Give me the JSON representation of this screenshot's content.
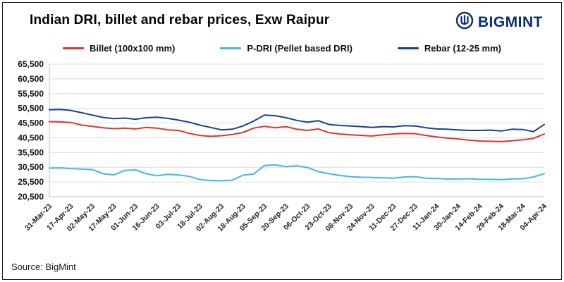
{
  "header": {
    "title": "Indian DRI, billet and rebar prices, Exw Raipur",
    "brand": "BIGMINT"
  },
  "footer": {
    "source": "Source: BigMint"
  },
  "chart_data": {
    "type": "line",
    "title": "Indian DRI, billet and rebar prices, Exw Raipur",
    "ylabel": "",
    "xlabel": "",
    "ylim": [
      20500,
      65500
    ],
    "grid": "horizontal",
    "legend_position": "top",
    "y_ticks": [
      "20,500",
      "25,500",
      "30,500",
      "35,500",
      "40,500",
      "45,500",
      "50,500",
      "55,500",
      "60,500",
      "65,500"
    ],
    "x_tick_labels": [
      "31-Mar-23",
      "17-Apr-23",
      "02-May-23",
      "17-May-23",
      "01-Jun-23",
      "16-Jun-23",
      "03-Jul-23",
      "18-Jul-23",
      "02-Aug-23",
      "18-Aug-23",
      "05-Sep-23",
      "20-Sep-23",
      "06-Oct-23",
      "23-Oct-23",
      "08-Nov-23",
      "24-Nov-23",
      "11-Dec-23",
      "27-Dec-23",
      "11-Jan-24",
      "30-Jan-24",
      "14-Feb-24",
      "29-Feb-24",
      "18-Mar-24",
      "04-Apr-24"
    ],
    "label_step": 2,
    "series": [
      {
        "name": "Billet (100x100 mm)",
        "color": "#e0342c",
        "values": [
          46000,
          45900,
          45700,
          44800,
          44400,
          43900,
          43600,
          43800,
          43500,
          44000,
          43800,
          43200,
          43000,
          42000,
          41300,
          41000,
          41200,
          41600,
          42300,
          43800,
          44400,
          43900,
          44300,
          43400,
          43000,
          43500,
          42200,
          41800,
          41500,
          41300,
          41100,
          41500,
          41800,
          42000,
          41900,
          41300,
          40800,
          40400,
          40100,
          39700,
          39400,
          39300,
          39200,
          39500,
          39800,
          40300,
          41800
        ]
      },
      {
        "name": "P-DRI (Pellet based DRI)",
        "color": "#41b8e6",
        "values": [
          30200,
          30300,
          30000,
          29900,
          29700,
          28300,
          27900,
          29400,
          29600,
          28300,
          27600,
          28100,
          27900,
          27400,
          26300,
          26000,
          25900,
          26100,
          27800,
          28200,
          31100,
          31300,
          30700,
          31000,
          30400,
          29000,
          28300,
          27700,
          27300,
          27100,
          27000,
          26900,
          26800,
          27200,
          27300,
          26800,
          26700,
          26500,
          26500,
          26600,
          26400,
          26400,
          26300,
          26500,
          26600,
          27200,
          28300
        ]
      },
      {
        "name": "Rebar (12-25 mm)",
        "color": "#1b3f8f",
        "values": [
          50000,
          50100,
          49800,
          49000,
          48200,
          47400,
          47000,
          47200,
          46800,
          47300,
          47500,
          47100,
          46500,
          45800,
          44800,
          44000,
          43200,
          43400,
          44500,
          46200,
          48200,
          48000,
          47300,
          46400,
          45800,
          46300,
          45000,
          44700,
          44500,
          44300,
          44000,
          44300,
          44200,
          44600,
          44500,
          43900,
          43500,
          43400,
          43200,
          43000,
          43000,
          43100,
          42800,
          43400,
          43300,
          42600,
          45000
        ]
      }
    ]
  }
}
